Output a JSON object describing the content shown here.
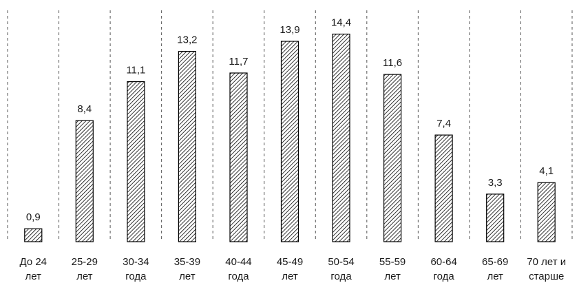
{
  "chart_data": {
    "type": "bar",
    "title": "",
    "xlabel": "",
    "ylabel": "",
    "categories": [
      [
        "До 24",
        "лет"
      ],
      [
        "25-29",
        "лет"
      ],
      [
        "30-34",
        "года"
      ],
      [
        "35-39",
        "лет"
      ],
      [
        "40-44",
        "года"
      ],
      [
        "45-49",
        "лет"
      ],
      [
        "50-54",
        "года"
      ],
      [
        "55-59",
        "лет"
      ],
      [
        "60-64",
        "года"
      ],
      [
        "65-69",
        "лет"
      ],
      [
        "70 лет и",
        "старше"
      ]
    ],
    "values": [
      0.9,
      8.4,
      11.1,
      13.2,
      11.7,
      13.9,
      14.4,
      11.6,
      7.4,
      3.3,
      4.1
    ],
    "value_labels": [
      "0,9",
      "8,4",
      "11,1",
      "13,2",
      "11,7",
      "13,9",
      "14,4",
      "11,6",
      "7,4",
      "3,3",
      "4,1"
    ],
    "ylim": [
      0,
      16
    ],
    "grid": "vertical dashed separators",
    "legend": "none",
    "bar_pattern": "diagonal hatch",
    "colors": {
      "bar_stroke": "#000000",
      "hatch": "#000000",
      "separator": "#555555",
      "text": "#1a1a1a"
    }
  }
}
